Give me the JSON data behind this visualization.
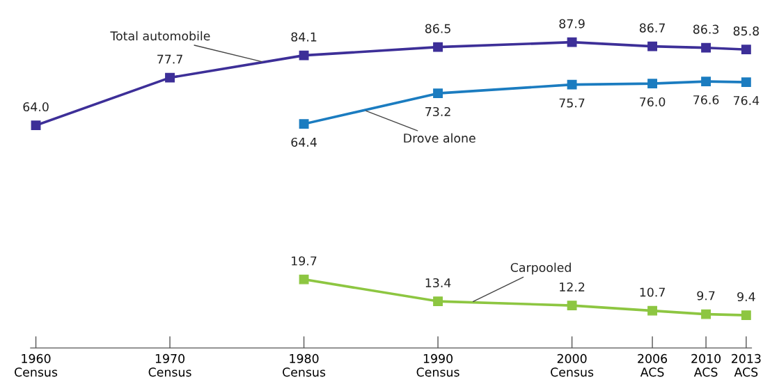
{
  "chart_data": {
    "type": "line",
    "marker": "square",
    "grid": false,
    "tick_labels": "x",
    "x": [
      1960,
      1970,
      1980,
      1990,
      2000,
      2006,
      2010,
      2013
    ],
    "xlim": [
      1959.6,
      2013.4
    ],
    "xticks": [
      {
        "value": 1960,
        "label": "1960\nCensus"
      },
      {
        "value": 1970,
        "label": "1970\nCensus"
      },
      {
        "value": 1980,
        "label": "1980\nCensus"
      },
      {
        "value": 1990,
        "label": "1990\nCensus"
      },
      {
        "value": 2000,
        "label": "2000\nCensus"
      },
      {
        "value": 2006,
        "label": "2006\nACS"
      },
      {
        "value": 2010,
        "label": "2010\nACS"
      },
      {
        "value": 2013,
        "label": "2013\nACS"
      }
    ],
    "series": [
      {
        "name": "Total automobile",
        "color": "#3d2f98",
        "values": [
          64.0,
          77.7,
          84.1,
          86.5,
          87.9,
          86.7,
          86.3,
          85.8
        ],
        "value_labels": [
          "64.0",
          "77.7",
          "84.1",
          "86.5",
          "87.9",
          "86.7",
          "86.3",
          "85.8"
        ]
      },
      {
        "name": "Drove alone",
        "color": "#1b7cc0",
        "values": [
          null,
          null,
          64.4,
          73.2,
          75.7,
          76.0,
          76.6,
          76.4
        ],
        "value_labels": [
          null,
          null,
          "64.4",
          "73.2",
          "75.7",
          "76.0",
          "76.6",
          "76.4"
        ]
      },
      {
        "name": "Carpooled",
        "color": "#8dc641",
        "values": [
          null,
          null,
          19.7,
          13.4,
          12.2,
          10.7,
          9.7,
          9.4
        ],
        "value_labels": [
          null,
          null,
          "19.7",
          "13.4",
          "12.2",
          "10.7",
          "9.7",
          "9.4"
        ]
      }
    ]
  }
}
